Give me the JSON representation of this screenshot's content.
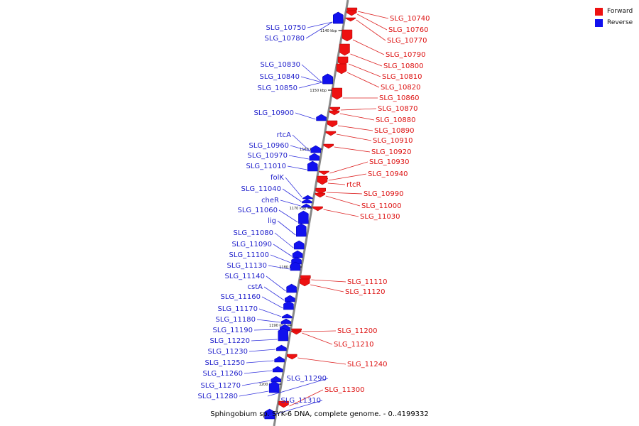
{
  "legend": {
    "forward": {
      "label": "Forward",
      "color": "#ee1111"
    },
    "reverse": {
      "label": "Reverse",
      "color": "#1111ee"
    }
  },
  "title": "Sphingobium sp. SYK-6 DNA, complete genome. - 0..4199332",
  "ticks": [
    "1140 kbp",
    "1150 kbp",
    "1160 kbp",
    "1170 kbp",
    "1180 kbp",
    "1190 kbp",
    "1200 kbp"
  ],
  "reverse_genes": [
    "SLG_10750",
    "SLG_10780",
    "SLG_10830",
    "SLG_10840",
    "SLG_10850",
    "SLG_10900",
    "rtcA",
    "SLG_10960",
    "SLG_10970",
    "SLG_11010",
    "folK",
    "SLG_11040",
    "cheR",
    "SLG_11060",
    "lig",
    "SLG_11080",
    "SLG_11090",
    "SLG_11100",
    "SLG_11130",
    "SLG_11140",
    "cstA",
    "SLG_11160",
    "SLG_11170",
    "SLG_11180",
    "SLG_11190",
    "SLG_11220",
    "SLG_11230",
    "SLG_11250",
    "SLG_11260",
    "SLG_11270",
    "SLG_11280",
    "SLG_11290",
    "SLG_11310"
  ],
  "forward_genes": [
    "SLG_10740",
    "SLG_10760",
    "SLG_10770",
    "SLG_10790",
    "SLG_10800",
    "SLG_10810",
    "SLG_10820",
    "SLG_10860",
    "SLG_10870",
    "SLG_10880",
    "SLG_10890",
    "SLG_10910",
    "SLG_10920",
    "SLG_10930",
    "SLG_10940",
    "rtcR",
    "SLG_10990",
    "SLG_11000",
    "SLG_11030",
    "SLG_11110",
    "SLG_11120",
    "SLG_11200",
    "SLG_11210",
    "SLG_11240",
    "SLG_11300"
  ]
}
